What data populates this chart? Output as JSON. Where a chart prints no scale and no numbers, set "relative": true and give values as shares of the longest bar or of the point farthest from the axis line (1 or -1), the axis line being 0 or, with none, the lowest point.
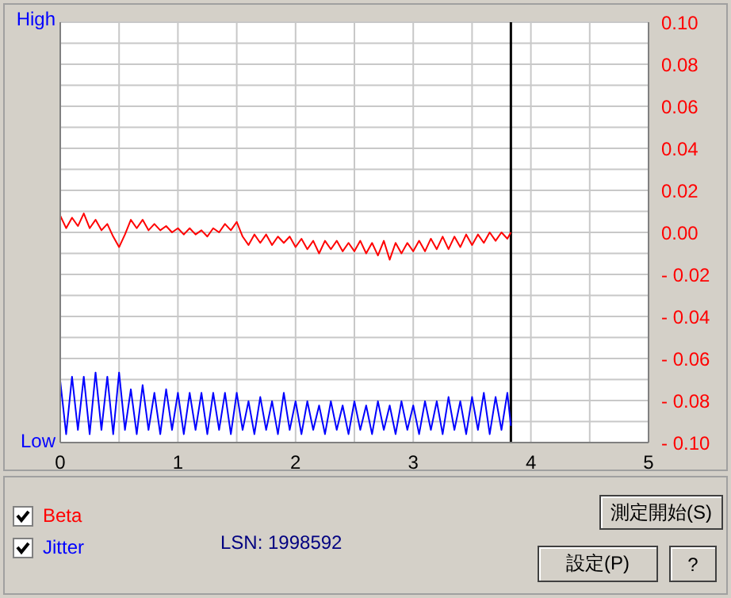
{
  "chart_data": [
    {
      "type": "line",
      "legend": "bottom left",
      "grid": true,
      "marker": "none",
      "line_style": "solid",
      "x": [
        0,
        0.05,
        0.1,
        0.15,
        0.2,
        0.25,
        0.3,
        0.35,
        0.4,
        0.45,
        0.5,
        0.55,
        0.6,
        0.65,
        0.7,
        0.75,
        0.8,
        0.85,
        0.9,
        0.95,
        1.0,
        1.05,
        1.1,
        1.15,
        1.2,
        1.25,
        1.3,
        1.35,
        1.4,
        1.45,
        1.5,
        1.55,
        1.6,
        1.65,
        1.7,
        1.75,
        1.8,
        1.85,
        1.9,
        1.95,
        2.0,
        2.05,
        2.1,
        2.15,
        2.2,
        2.25,
        2.3,
        2.35,
        2.4,
        2.45,
        2.5,
        2.55,
        2.6,
        2.65,
        2.7,
        2.75,
        2.8,
        2.85,
        2.9,
        2.95,
        3.0,
        3.05,
        3.1,
        3.15,
        3.2,
        3.25,
        3.3,
        3.35,
        3.4,
        3.45,
        3.5,
        3.55,
        3.6,
        3.65,
        3.7,
        3.75,
        3.8,
        3.83
      ],
      "xlim": [
        0,
        5
      ],
      "xticks": [
        0,
        {
          "value": 0.5,
          "label": null
        },
        1,
        {
          "value": 1.5,
          "label": null
        },
        2,
        {
          "value": 2.5,
          "label": null
        },
        3,
        {
          "value": 3.5,
          "label": null
        },
        4,
        {
          "value": 4.5,
          "label": null
        },
        5
      ],
      "y2lim": [
        -0.1,
        0.1
      ],
      "y2ticks": [
        {
          "value": -0.1,
          "label": "- 0.10"
        },
        {
          "value": -0.09,
          "label": null
        },
        {
          "value": -0.08,
          "label": "- 0.08"
        },
        {
          "value": -0.07,
          "label": null
        },
        {
          "value": -0.06,
          "label": "- 0.06"
        },
        {
          "value": -0.05,
          "label": null
        },
        {
          "value": -0.04,
          "label": "- 0.04"
        },
        {
          "value": -0.03,
          "label": null
        },
        {
          "value": -0.02,
          "label": "- 0.02"
        },
        {
          "value": -0.01,
          "label": null
        },
        {
          "value": 0,
          "label": "0.00"
        },
        {
          "value": 0.01,
          "label": null
        },
        {
          "value": 0.02,
          "label": "0.02"
        },
        {
          "value": 0.03,
          "label": null
        },
        {
          "value": 0.04,
          "label": "0.04"
        },
        {
          "value": 0.05,
          "label": null
        },
        {
          "value": 0.06,
          "label": "0.06"
        },
        {
          "value": 0.07,
          "label": null
        },
        {
          "value": 0.08,
          "label": "0.08"
        },
        {
          "value": 0.09,
          "label": null
        },
        {
          "value": 0.1,
          "label": "0.10"
        }
      ],
      "ref_lines": [
        {
          "axis": "x",
          "value": 3.83,
          "color": "#000000"
        }
      ],
      "annotations": [
        "LSN: 1998592",
        "測定開始(S)",
        "設定(P)",
        "?"
      ],
      "series": [
        {
          "name": "Beta",
          "color": "#ff0000",
          "axis": "y2",
          "values": [
            0.008,
            0.002,
            0.007,
            0.003,
            0.009,
            0.002,
            0.006,
            0.001,
            0.004,
            -0.002,
            -0.007,
            -0.001,
            0.006,
            0.002,
            0.006,
            0.001,
            0.004,
            0.001,
            0.003,
            0.0,
            0.002,
            -0.001,
            0.002,
            -0.001,
            0.001,
            -0.002,
            0.002,
            0.0,
            0.004,
            0.001,
            0.005,
            -0.002,
            -0.006,
            -0.001,
            -0.005,
            -0.001,
            -0.006,
            -0.002,
            -0.005,
            -0.002,
            -0.007,
            -0.003,
            -0.008,
            -0.004,
            -0.01,
            -0.004,
            -0.008,
            -0.004,
            -0.009,
            -0.005,
            -0.009,
            -0.004,
            -0.01,
            -0.005,
            -0.011,
            -0.004,
            -0.013,
            -0.005,
            -0.01,
            -0.005,
            -0.009,
            -0.004,
            -0.009,
            -0.003,
            -0.008,
            -0.002,
            -0.008,
            -0.002,
            -0.007,
            -0.001,
            -0.006,
            -0.001,
            -0.005,
            0.0,
            -0.004,
            0.0,
            -0.003,
            0.0
          ]
        }
      ]
    },
    {
      "type": "line",
      "legend": "bottom left",
      "marker": "none",
      "line_style": "solid",
      "relative": true,
      "x": [
        0,
        0.05,
        0.1,
        0.15,
        0.2,
        0.25,
        0.3,
        0.35,
        0.4,
        0.45,
        0.5,
        0.55,
        0.6,
        0.65,
        0.7,
        0.75,
        0.8,
        0.85,
        0.9,
        0.95,
        1.0,
        1.05,
        1.1,
        1.15,
        1.2,
        1.25,
        1.3,
        1.35,
        1.4,
        1.45,
        1.5,
        1.55,
        1.6,
        1.65,
        1.7,
        1.75,
        1.8,
        1.85,
        1.9,
        1.95,
        2.0,
        2.05,
        2.1,
        2.15,
        2.2,
        2.25,
        2.3,
        2.35,
        2.4,
        2.45,
        2.5,
        2.55,
        2.6,
        2.65,
        2.7,
        2.75,
        2.8,
        2.85,
        2.9,
        2.95,
        3.0,
        3.05,
        3.1,
        3.15,
        3.2,
        3.25,
        3.3,
        3.35,
        3.4,
        3.45,
        3.5,
        3.55,
        3.6,
        3.65,
        3.7,
        3.75,
        3.8,
        3.83
      ],
      "xlim": [
        0,
        5
      ],
      "annotations": [
        "High",
        "Low"
      ],
      "series": [
        {
          "name": "Jitter",
          "color": "#0000ff",
          "values": [
            0.88,
            0.12,
            0.94,
            0.18,
            0.94,
            0.12,
            1,
            0.18,
            0.94,
            0.12,
            1,
            0.18,
            0.76,
            0.12,
            0.82,
            0.18,
            0.71,
            0.12,
            0.76,
            0.18,
            0.71,
            0.12,
            0.71,
            0.18,
            0.71,
            0.12,
            0.71,
            0.18,
            0.71,
            0.12,
            0.71,
            0.18,
            0.59,
            0.12,
            0.65,
            0.18,
            0.59,
            0.12,
            0.71,
            0.18,
            0.59,
            0.12,
            0.59,
            0.18,
            0.53,
            0.12,
            0.59,
            0.18,
            0.53,
            0.12,
            0.59,
            0.18,
            0.53,
            0.12,
            0.59,
            0.18,
            0.53,
            0.12,
            0.59,
            0.18,
            0.53,
            0.12,
            0.59,
            0.18,
            0.59,
            0.12,
            0.65,
            0.18,
            0.59,
            0.12,
            0.65,
            0.18,
            0.71,
            0.12,
            0.65,
            0.18,
            0.71,
            0.24
          ]
        }
      ]
    }
  ]
}
